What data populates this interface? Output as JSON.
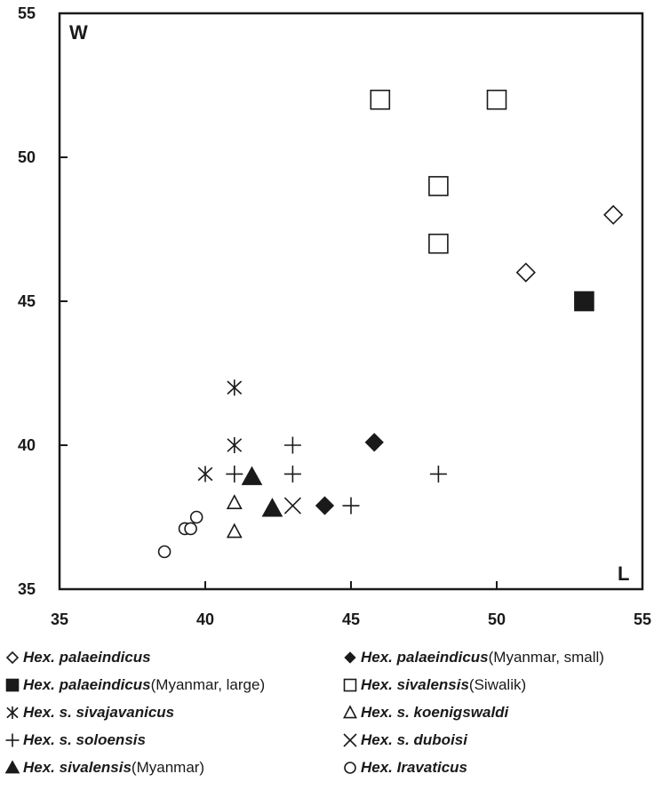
{
  "chart_data": {
    "type": "scatter",
    "title": "",
    "xlabel": "L",
    "ylabel": "W",
    "xlim": [
      35,
      55
    ],
    "ylim": [
      35,
      55
    ],
    "x_ticks": [
      35,
      40,
      45,
      50,
      55
    ],
    "y_ticks": [
      35,
      40,
      45,
      50,
      55
    ],
    "grid": false,
    "series": [
      {
        "name": "Hex. palaeindicus",
        "note": "",
        "marker": "diamond-open",
        "points": [
          [
            51,
            46
          ],
          [
            54,
            48
          ]
        ]
      },
      {
        "name": "Hex. palaeindicus",
        "note": "(Myanmar, small)",
        "marker": "diamond-filled",
        "points": [
          [
            45.8,
            40.1
          ],
          [
            44.1,
            37.9
          ]
        ]
      },
      {
        "name": "Hex. palaeindicus",
        "note": "(Myanmar, large)",
        "marker": "square-filled",
        "points": [
          [
            53,
            45
          ]
        ]
      },
      {
        "name": "Hex. sivalensis",
        "note": "(Siwalik)",
        "marker": "square-open",
        "points": [
          [
            46,
            52
          ],
          [
            50,
            52
          ],
          [
            48,
            49
          ],
          [
            48,
            47
          ]
        ]
      },
      {
        "name": "Hex. s. sivajavanicus",
        "note": "",
        "marker": "asterisk",
        "points": [
          [
            41,
            42
          ],
          [
            41,
            40
          ],
          [
            40,
            39
          ]
        ]
      },
      {
        "name": "Hex. s. koenigswaldi",
        "note": "",
        "marker": "triangle-open",
        "points": [
          [
            41,
            38
          ],
          [
            41,
            37
          ]
        ]
      },
      {
        "name": "Hex. s. soloensis",
        "note": "",
        "marker": "plus",
        "points": [
          [
            43,
            40
          ],
          [
            41,
            39
          ],
          [
            43,
            39
          ],
          [
            48,
            39
          ],
          [
            45,
            37.9
          ]
        ]
      },
      {
        "name": "Hex. s. duboisi",
        "note": "",
        "marker": "cross",
        "points": [
          [
            43,
            37.9
          ]
        ]
      },
      {
        "name": "Hex. sivalensis",
        "note": "(Myanmar)",
        "marker": "triangle-filled",
        "points": [
          [
            41.6,
            38.9
          ],
          [
            42.3,
            37.8
          ]
        ]
      },
      {
        "name": "Hex. Iravaticus",
        "note": "",
        "marker": "circle-open",
        "points": [
          [
            38.6,
            36.3
          ],
          [
            39.3,
            37.1
          ],
          [
            39.5,
            37.1
          ],
          [
            39.7,
            37.5
          ]
        ]
      }
    ]
  }
}
